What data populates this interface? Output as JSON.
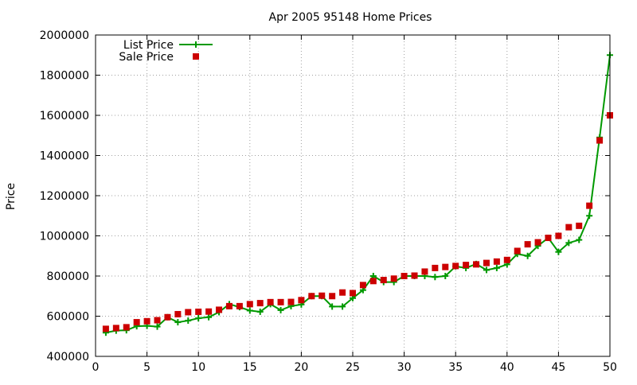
{
  "chart_data": {
    "type": "line",
    "title": "Apr 2005 95148 Home Prices",
    "xlabel": "",
    "ylabel": "Price",
    "xlim": [
      0,
      50
    ],
    "ylim": [
      400000,
      2000000
    ],
    "xticks": [
      0,
      5,
      10,
      15,
      20,
      25,
      30,
      35,
      40,
      45,
      50
    ],
    "yticks": [
      400000,
      600000,
      800000,
      1000000,
      1200000,
      1400000,
      1600000,
      1800000,
      2000000
    ],
    "grid": true,
    "legend_position": "top-left",
    "x": [
      1,
      2,
      3,
      4,
      5,
      6,
      7,
      8,
      9,
      10,
      11,
      12,
      13,
      14,
      15,
      16,
      17,
      18,
      19,
      20,
      21,
      22,
      23,
      24,
      25,
      26,
      27,
      28,
      29,
      30,
      31,
      32,
      33,
      34,
      35,
      36,
      37,
      38,
      39,
      40,
      41,
      42,
      43,
      44,
      45,
      46,
      47,
      48,
      49,
      50
    ],
    "series": [
      {
        "name": "List Price",
        "style": "linespoints",
        "color": "#009900",
        "marker": "plus",
        "values": [
          518000,
          528000,
          530000,
          550000,
          552000,
          548000,
          595000,
          570000,
          578000,
          590000,
          595000,
          620000,
          660000,
          645000,
          628000,
          622000,
          660000,
          630000,
          650000,
          658000,
          700000,
          700000,
          648000,
          648000,
          690000,
          730000,
          800000,
          770000,
          770000,
          800000,
          800000,
          800000,
          795000,
          800000,
          848000,
          840000,
          860000,
          830000,
          840000,
          858000,
          910000,
          900000,
          950000,
          990000,
          920000,
          965000,
          980000,
          1100000,
          1490000,
          1900000
        ]
      },
      {
        "name": "Sale Price",
        "style": "points",
        "color": "#cc0000",
        "marker": "square",
        "values": [
          537000,
          541000,
          545000,
          570000,
          575000,
          580000,
          595000,
          610000,
          620000,
          622000,
          623000,
          632000,
          650000,
          650000,
          660000,
          665000,
          670000,
          670000,
          671000,
          680000,
          700000,
          702000,
          700000,
          718000,
          715000,
          755000,
          775000,
          780000,
          787000,
          800000,
          802000,
          822000,
          840000,
          845000,
          850000,
          855000,
          858000,
          865000,
          872000,
          880000,
          925000,
          958000,
          968000,
          990000,
          1000000,
          1043000,
          1050000,
          1150000,
          1475000,
          1600000
        ]
      }
    ]
  }
}
